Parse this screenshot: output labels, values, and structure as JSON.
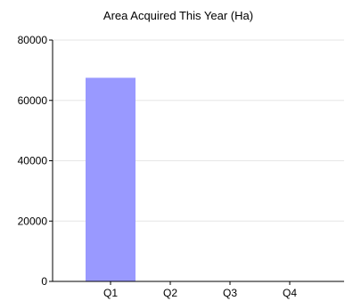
{
  "chart_data": {
    "type": "bar",
    "title": "Area Acquired This Year (Ha)",
    "xlabel": "",
    "ylabel": "",
    "categories": [
      "Q1",
      "Q2",
      "Q3",
      "Q4"
    ],
    "values": [
      67500,
      0,
      0,
      0
    ],
    "ylim": [
      0,
      80000
    ],
    "yticks": [
      "0",
      "20000",
      "40000",
      "60000",
      "80000"
    ],
    "grid": true,
    "legend": "none",
    "bar_color": "#9999ff",
    "grid_color": "#e6e6e6",
    "axis_color": "#000000"
  }
}
